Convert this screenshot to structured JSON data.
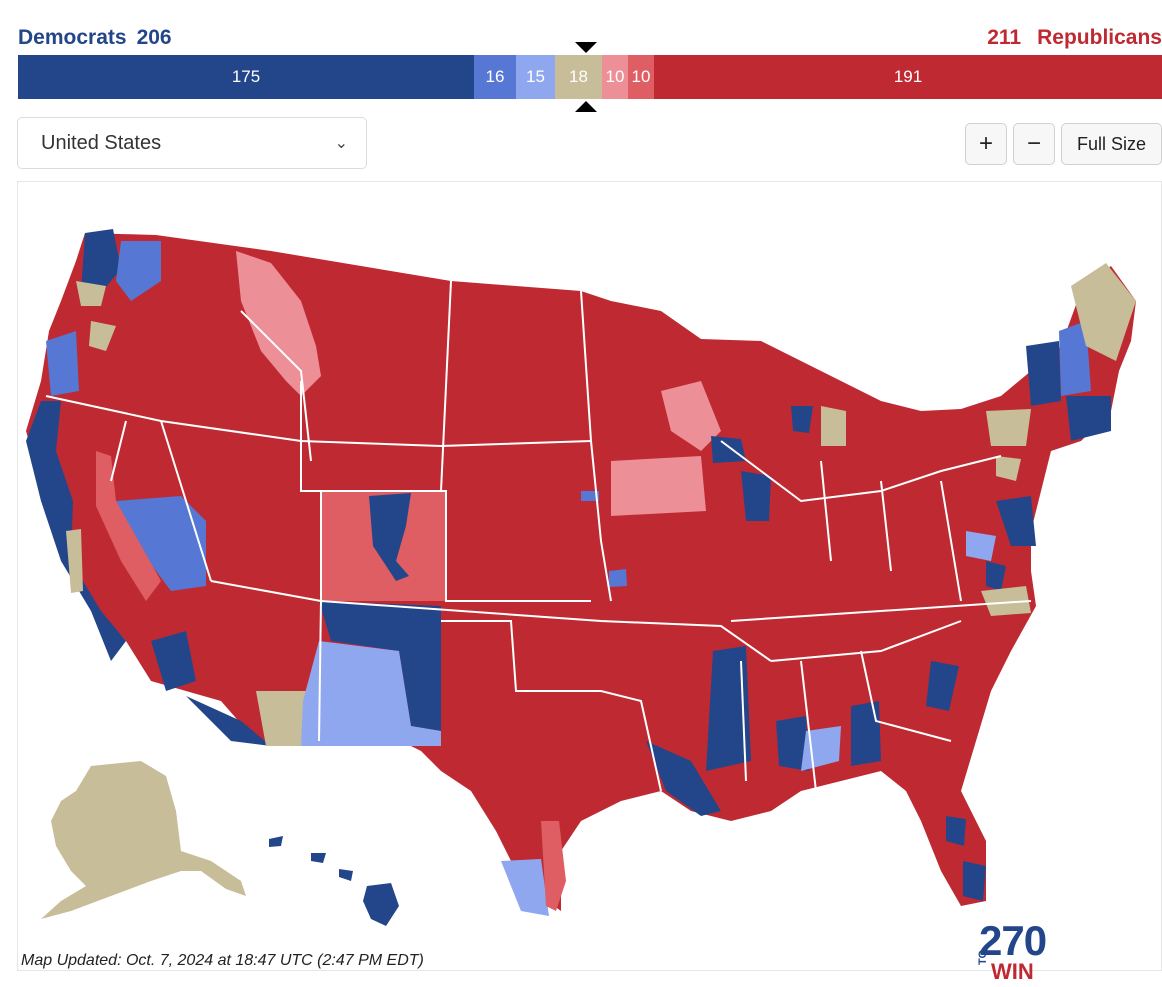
{
  "header": {
    "democrats": {
      "label": "Democrats",
      "count": "206",
      "color": "#23468a"
    },
    "republicans": {
      "label": "Republicans",
      "count": "211",
      "color": "#bf2a32"
    }
  },
  "seat_bar": [
    {
      "category": "safe-d",
      "value": "175",
      "color": "#23468a"
    },
    {
      "category": "likely-d",
      "value": "16",
      "color": "#5677d3"
    },
    {
      "category": "lean-d",
      "value": "15",
      "color": "#8fa7ef"
    },
    {
      "category": "tossup",
      "value": "18",
      "color": "#c7bd98"
    },
    {
      "category": "lean-r",
      "value": "10",
      "color": "#ec8f97"
    },
    {
      "category": "likely-r",
      "value": "10",
      "color": "#df5e63"
    },
    {
      "category": "safe-r",
      "value": "191",
      "color": "#bf2a32"
    }
  ],
  "controls": {
    "state_select_value": "United States",
    "zoom_in_label": "+",
    "zoom_out_label": "−",
    "full_size_label": "Full Size"
  },
  "map": {
    "logo_number": "270",
    "logo_to": "TO",
    "logo_win": "WIN",
    "updated_text": "Map Updated: Oct. 7, 2024 at 18:47 UTC (2:47 PM EDT)"
  }
}
